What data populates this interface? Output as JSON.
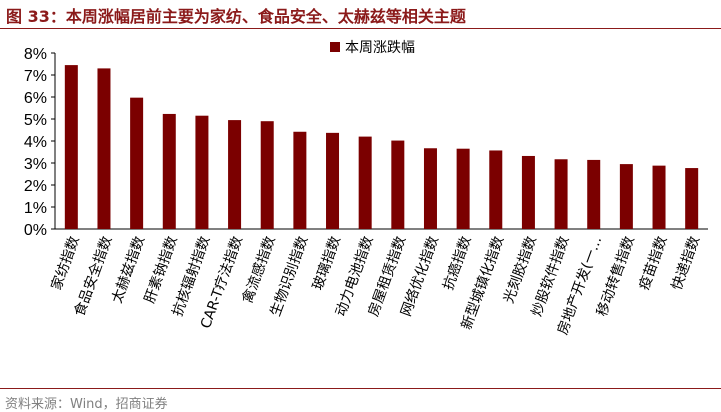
{
  "header": {
    "title": "图 33：本周涨幅居前主要为家纺、食品安全、太赫兹等相关主题"
  },
  "footer": {
    "source": "资料来源：Wind，招商证券"
  },
  "chart_data": {
    "type": "bar",
    "categories": [
      "家纺指数",
      "食品安全指数",
      "太赫兹指数",
      "肝素钠指数",
      "抗核辐射指数",
      "CAR-T疗法指数",
      "禽流感指数",
      "生物识别指数",
      "玻璃指数",
      "动力电池指数",
      "房屋租赁指数",
      "网络优化指数",
      "抗癌指数",
      "新型城镇化指数",
      "光刻胶指数",
      "炒股软件指数",
      "房地产开发(一…",
      "移动转售指数",
      "疫苗指数",
      "快递指数"
    ],
    "series": [
      {
        "name": "本周涨跌幅",
        "values": [
          7.45,
          7.3,
          5.97,
          5.23,
          5.15,
          4.95,
          4.9,
          4.42,
          4.37,
          4.2,
          4.02,
          3.67,
          3.65,
          3.57,
          3.32,
          3.17,
          3.14,
          2.95,
          2.88,
          2.77
        ]
      }
    ],
    "yticks": [
      "0%",
      "1%",
      "2%",
      "3%",
      "4%",
      "5%",
      "6%",
      "7%",
      "8%"
    ],
    "ylim": [
      0,
      8
    ],
    "bar_color": "#7B0000",
    "legend_position": "top-center",
    "grid": false
  }
}
